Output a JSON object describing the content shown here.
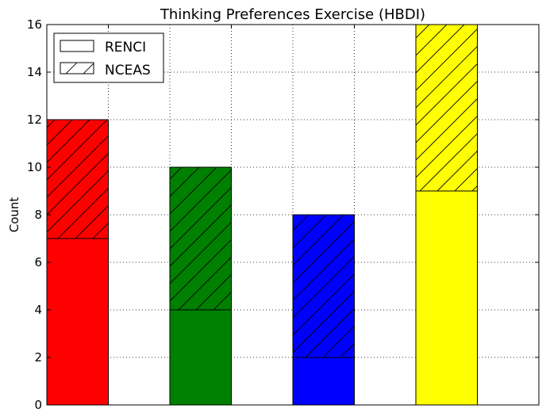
{
  "chart_data": {
    "type": "bar",
    "stacked": true,
    "title": "Thinking Preferences Exercise (HBDI)",
    "xlabel": "",
    "ylabel": "Count",
    "ylim": [
      0,
      16
    ],
    "yticks": [
      "0",
      "2",
      "4",
      "6",
      "8",
      "10",
      "12",
      "14",
      "16"
    ],
    "grid": true,
    "legend_placement": "top-left",
    "bar_colors": [
      "#ff0000",
      "#008000",
      "#0000ff",
      "#ffff00"
    ],
    "series": [
      {
        "name": "RENCI",
        "hatch": "none",
        "values": [
          7,
          4,
          2,
          9
        ]
      },
      {
        "name": "NCEAS",
        "hatch": "diagonal",
        "values": [
          5,
          6,
          6,
          7
        ]
      }
    ]
  }
}
